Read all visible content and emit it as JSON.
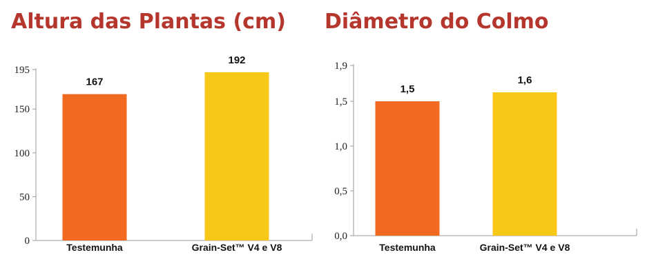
{
  "chart_data": [
    {
      "type": "bar",
      "title": "Altura das Plantas (cm)",
      "categories": [
        "Testemunha",
        "Grain-Set™ V4 e V8"
      ],
      "values": [
        167,
        192
      ],
      "value_labels": [
        "167",
        "192"
      ],
      "yticks": [
        0,
        50,
        100,
        150,
        195
      ],
      "ytick_labels": [
        "0",
        "50",
        "100",
        "150",
        "195"
      ],
      "ylim": [
        0,
        195
      ],
      "grid": false,
      "colors": [
        "#f26a21",
        "#f7c818"
      ],
      "title_color": "#b5362d"
    },
    {
      "type": "bar",
      "title": "Diâmetro do Colmo",
      "categories": [
        "Testemunha",
        "Grain-Set™ V4 e V8"
      ],
      "values": [
        1.5,
        1.6
      ],
      "value_labels": [
        "1,5",
        "1,6"
      ],
      "yticks": [
        0,
        0.5,
        1.0,
        1.5,
        1.9
      ],
      "ytick_labels": [
        "0,0",
        "0,5",
        "1,0",
        "1,5",
        "1,9"
      ],
      "ylim": [
        0,
        1.9
      ],
      "grid": false,
      "colors": [
        "#f26a21",
        "#f7c818"
      ],
      "title_color": "#b5362d"
    }
  ]
}
